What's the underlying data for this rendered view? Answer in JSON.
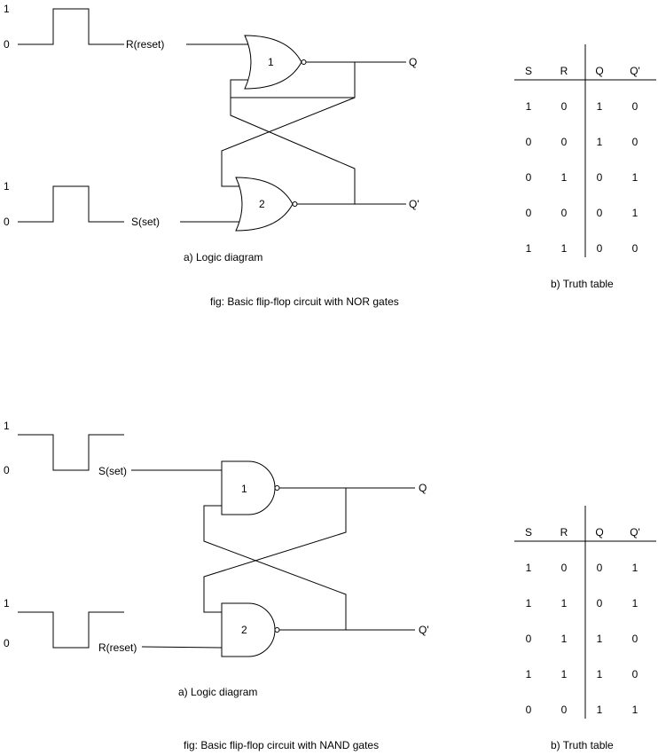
{
  "nor": {
    "r_high": "1",
    "r_low": "0",
    "r_label": "R(reset)",
    "s_high": "1",
    "s_low": "0",
    "s_label": "S(set)",
    "gate1": "1",
    "gate2": "2",
    "q": "Q",
    "qbar": "Q'",
    "diagram_caption": "a)  Logic diagram",
    "figure_caption": "fig: Basic flip-flop circuit with NOR gates",
    "table_caption": "b) Truth table",
    "table": {
      "headers": [
        "S",
        "R",
        "Q",
        "Q'"
      ],
      "rows": [
        [
          "1",
          "0",
          "1",
          "0"
        ],
        [
          "0",
          "0",
          "1",
          "0"
        ],
        [
          "0",
          "1",
          "0",
          "1"
        ],
        [
          "0",
          "0",
          "0",
          "1"
        ],
        [
          "1",
          "1",
          "0",
          "0"
        ]
      ]
    }
  },
  "nand": {
    "s_high": "1",
    "s_low": "0",
    "s_label": "S(set)",
    "r_high": "1",
    "r_low": "0",
    "r_label": "R(reset)",
    "gate1": "1",
    "gate2": "2",
    "q": "Q",
    "qbar": "Q'",
    "diagram_caption": "a)  Logic diagram",
    "figure_caption": "fig: Basic flip-flop circuit with NAND gates",
    "table_caption": "b) Truth table",
    "table": {
      "headers": [
        "S",
        "R",
        "Q",
        "Q'"
      ],
      "rows": [
        [
          "1",
          "0",
          "0",
          "1"
        ],
        [
          "1",
          "1",
          "0",
          "1"
        ],
        [
          "0",
          "1",
          "1",
          "0"
        ],
        [
          "1",
          "1",
          "1",
          "0"
        ],
        [
          "0",
          "0",
          "1",
          "1"
        ]
      ]
    }
  }
}
